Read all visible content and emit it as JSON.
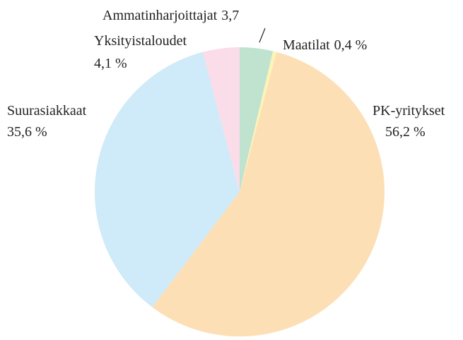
{
  "chart_data": {
    "type": "pie",
    "categories": [
      "Ammatinharjoittajat",
      "Maatilat",
      "PK-yritykset",
      "Suurasiakkaat",
      "Yksityistaloudet"
    ],
    "values": [
      3.7,
      0.4,
      56.2,
      35.6,
      4.1
    ],
    "value_labels": [
      "3,7",
      "0,4 %",
      "56,2 %",
      "35,6 %",
      "4,1 %"
    ],
    "colors": [
      "#bfe3cf",
      "#fbf4b6",
      "#fddfb5",
      "#cfeaf8",
      "#fbdce9"
    ]
  }
}
